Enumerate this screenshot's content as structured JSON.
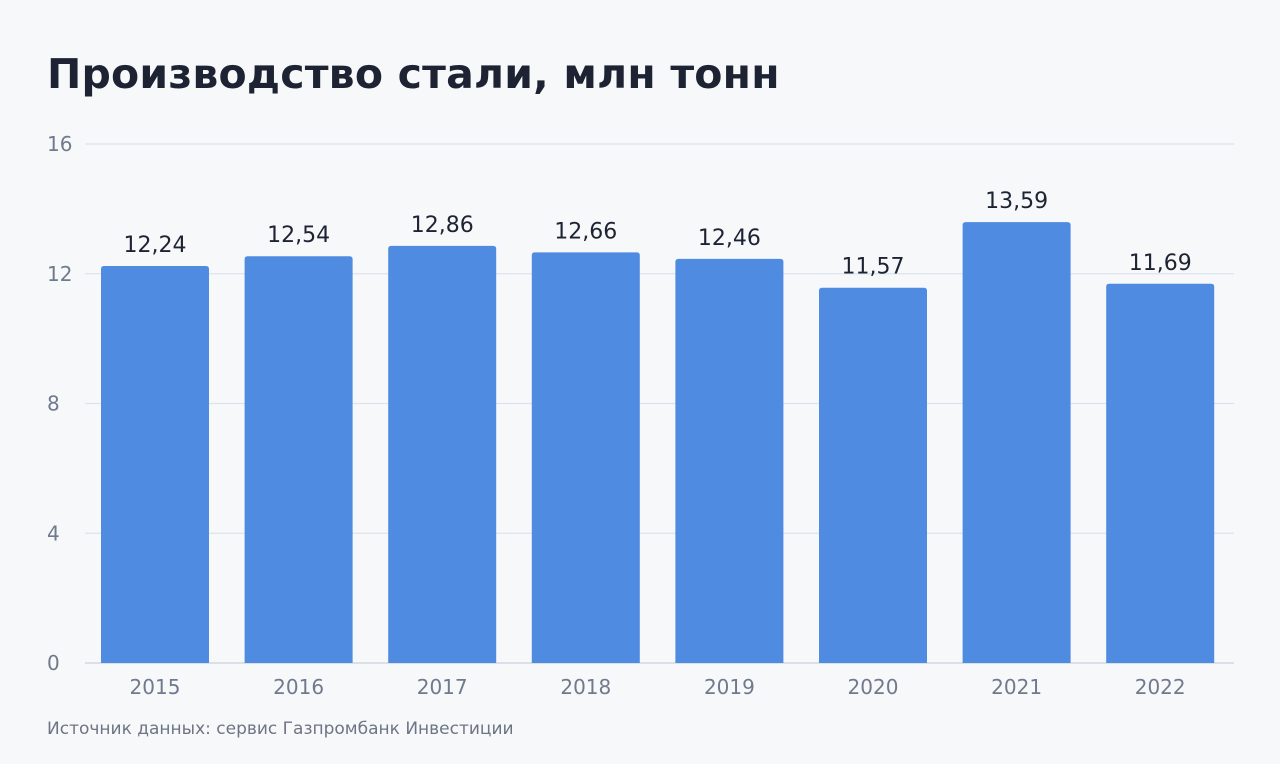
{
  "colors": {
    "bar": "#508be2",
    "grid": "#dde3ec",
    "axis": "#c9d1dc"
  },
  "chart_data": {
    "type": "bar",
    "title": "Производство стали, млн тонн",
    "source": "Источник данных: сервис Газпромбанк Инвестиции",
    "xlabel": "",
    "ylabel": "",
    "categories": [
      "2015",
      "2016",
      "2017",
      "2018",
      "2019",
      "2020",
      "2021",
      "2022"
    ],
    "values": [
      12.24,
      12.54,
      12.86,
      12.66,
      12.46,
      11.57,
      13.59,
      11.69
    ],
    "value_labels": [
      "12,24",
      "12,54",
      "12,86",
      "12,66",
      "12,46",
      "11,57",
      "13,59",
      "11,69"
    ],
    "ylim": [
      0,
      16
    ],
    "yticks": [
      0,
      4,
      8,
      12,
      16
    ],
    "grid": true,
    "legend": "none"
  }
}
